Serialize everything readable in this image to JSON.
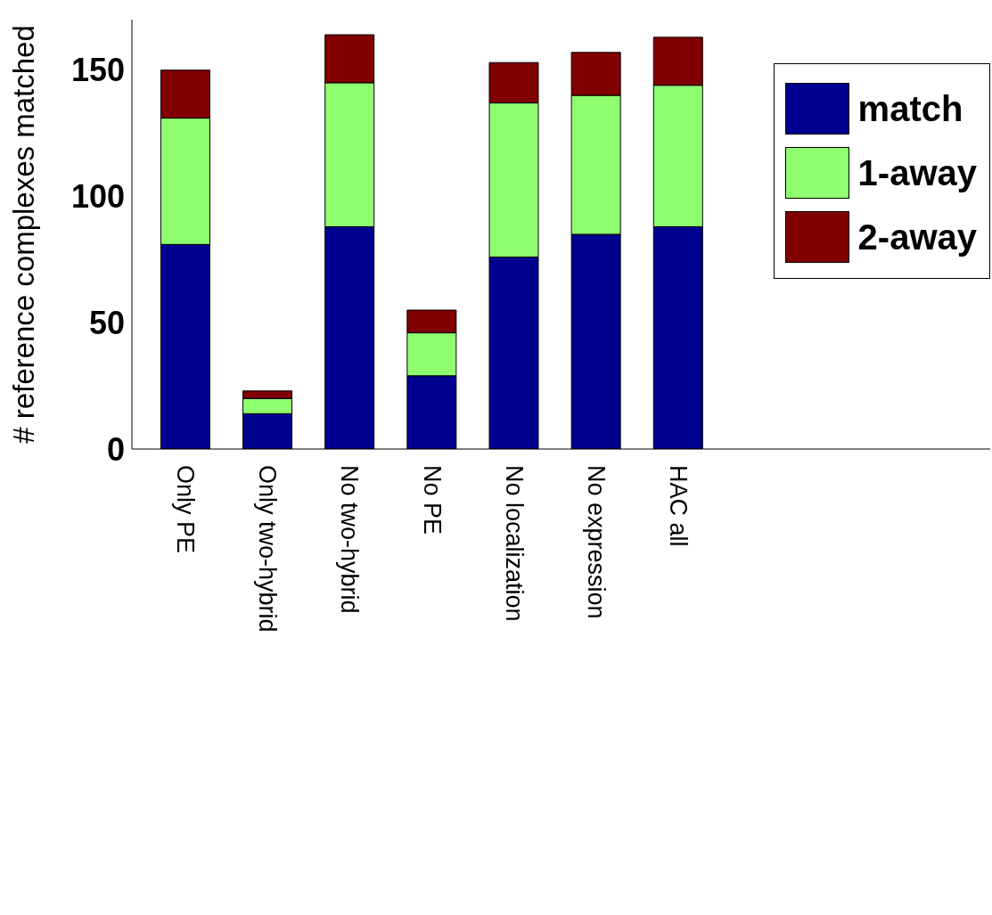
{
  "chart_data": {
    "type": "bar",
    "stacked": true,
    "ylabel": "# reference complexes matched",
    "categories": [
      "Only PE",
      "Only two-hybrid",
      "No two-hybrid",
      "No PE",
      "No localization",
      "No expression",
      "HAC all"
    ],
    "series": [
      {
        "name": "match",
        "color": "#00008f",
        "values": [
          81,
          14,
          88,
          29,
          76,
          85,
          88
        ]
      },
      {
        "name": "1-away",
        "color": "#8fff6f",
        "values": [
          50,
          6,
          57,
          17,
          61,
          55,
          56
        ]
      },
      {
        "name": "2-away",
        "color": "#800000",
        "values": [
          19,
          3,
          19,
          9,
          16,
          17,
          19
        ]
      }
    ],
    "ylim": [
      0,
      170
    ],
    "yticks": [
      0,
      50,
      100,
      150
    ],
    "grid": false,
    "legend": "top right"
  }
}
